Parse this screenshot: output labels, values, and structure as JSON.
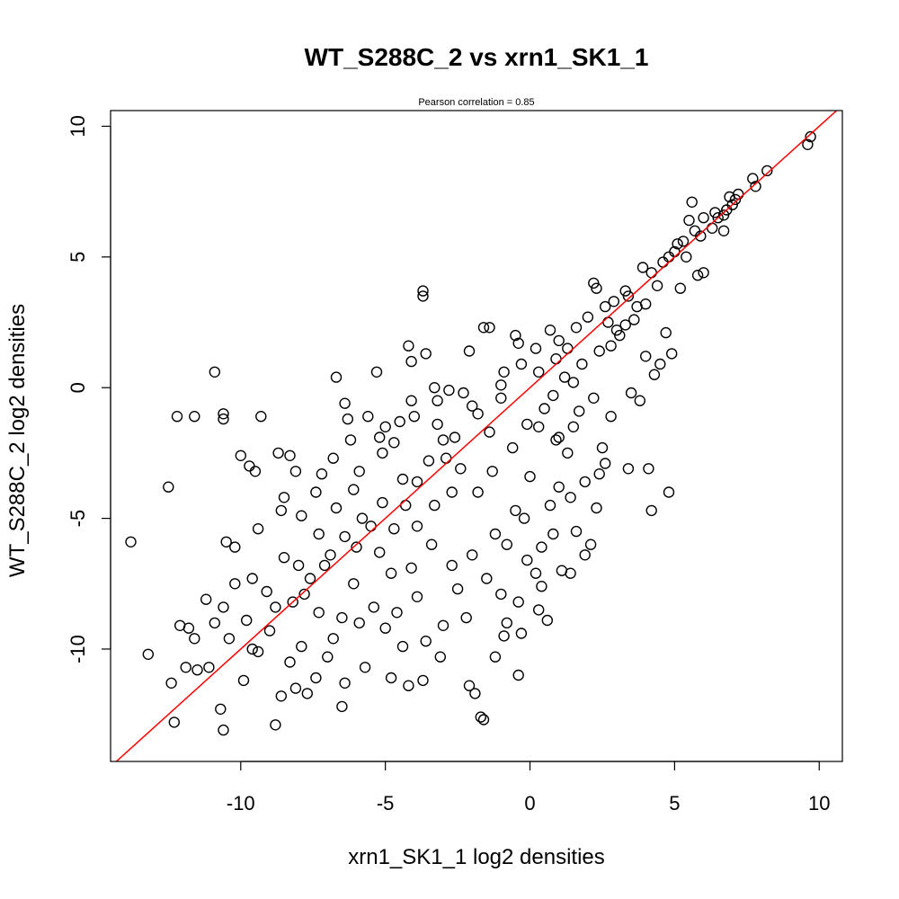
{
  "chart_data": {
    "type": "scatter",
    "title": "WT_S288C_2 vs xrn1_SK1_1",
    "subtitle": "Pearson correlation =  0.85",
    "xlabel": "xrn1_SK1_1 log2 densities",
    "ylabel": "WT_S288C_2 log2 densities",
    "xlim": [
      -14.5,
      10.8
    ],
    "ylim": [
      -14.3,
      10.6
    ],
    "x_ticks": [
      -10,
      -5,
      0,
      5,
      10
    ],
    "x_tick_labels": [
      "-10",
      "-5",
      "0",
      "5",
      "10"
    ],
    "y_ticks": [
      -10,
      -5,
      0,
      5,
      10
    ],
    "y_tick_labels": [
      "-10",
      "-5",
      "0",
      "5",
      "10"
    ],
    "grid": false,
    "legend": "none",
    "point_color": "#000000",
    "reference_line": {
      "slope": 1.0,
      "intercept": 0.0,
      "color": "#ff0000"
    },
    "points": [
      [
        9.7,
        9.6
      ],
      [
        9.6,
        9.3
      ],
      [
        8.2,
        8.3
      ],
      [
        7.7,
        8.0
      ],
      [
        7.8,
        7.7
      ],
      [
        7.2,
        7.4
      ],
      [
        7.1,
        7.2
      ],
      [
        7.0,
        7.0
      ],
      [
        6.9,
        7.3
      ],
      [
        6.8,
        6.8
      ],
      [
        6.7,
        6.6
      ],
      [
        6.5,
        6.5
      ],
      [
        6.4,
        6.7
      ],
      [
        6.0,
        6.5
      ],
      [
        5.6,
        7.1
      ],
      [
        5.5,
        6.4
      ],
      [
        5.7,
        6.0
      ],
      [
        5.3,
        5.6
      ],
      [
        5.0,
        5.2
      ],
      [
        4.8,
        5.0
      ],
      [
        4.6,
        4.8
      ],
      [
        5.8,
        4.3
      ],
      [
        6.0,
        4.4
      ],
      [
        6.7,
        6.0
      ],
      [
        5.4,
        5.0
      ],
      [
        5.2,
        3.8
      ],
      [
        4.7,
        2.1
      ],
      [
        4.9,
        1.3
      ],
      [
        4.5,
        0.9
      ],
      [
        3.4,
        3.5
      ],
      [
        3.3,
        2.4
      ],
      [
        3.0,
        2.2
      ],
      [
        2.8,
        1.6
      ],
      [
        4.0,
        1.2
      ],
      [
        4.3,
        0.5
      ],
      [
        3.5,
        -0.2
      ],
      [
        2.2,
        -0.4
      ],
      [
        2.8,
        -1.1
      ],
      [
        3.8,
        -0.5
      ],
      [
        1.7,
        -0.9
      ],
      [
        0.3,
        -1.5
      ],
      [
        1.0,
        -1.9
      ],
      [
        2.6,
        -2.9
      ],
      [
        2.4,
        -3.3
      ],
      [
        3.4,
        -3.1
      ],
      [
        2.5,
        -2.3
      ],
      [
        1.5,
        -1.5
      ],
      [
        1.3,
        -2.5
      ],
      [
        0.9,
        -2.0
      ],
      [
        4.1,
        -3.1
      ],
      [
        4.8,
        -4.0
      ],
      [
        4.2,
        -4.7
      ],
      [
        2.1,
        -6.0
      ],
      [
        1.9,
        -6.4
      ],
      [
        1.6,
        -5.5
      ],
      [
        1.4,
        -4.2
      ],
      [
        1.0,
        -3.8
      ],
      [
        0.7,
        -4.5
      ],
      [
        1.1,
        -7.0
      ],
      [
        1.4,
        -7.1
      ],
      [
        0.8,
        -5.6
      ],
      [
        0.4,
        -6.1
      ],
      [
        -0.1,
        -6.6
      ],
      [
        0.2,
        -7.1
      ],
      [
        0.4,
        -7.6
      ],
      [
        -0.4,
        -8.2
      ],
      [
        0.3,
        -8.5
      ],
      [
        -0.3,
        -9.4
      ],
      [
        -0.9,
        -9.5
      ],
      [
        -0.4,
        -11.0
      ],
      [
        -1.2,
        -10.3
      ],
      [
        -1.9,
        -11.7
      ],
      [
        -2.1,
        -11.4
      ],
      [
        -1.7,
        -12.6
      ],
      [
        -1.6,
        -12.7
      ],
      [
        -3.1,
        -10.3
      ],
      [
        -3.7,
        -11.2
      ],
      [
        -4.2,
        -11.4
      ],
      [
        -4.8,
        -11.1
      ],
      [
        -5.7,
        -10.7
      ],
      [
        -6.4,
        -11.3
      ],
      [
        -6.5,
        -12.2
      ],
      [
        -7.4,
        -11.1
      ],
      [
        -7.7,
        -11.7
      ],
      [
        -8.1,
        -11.5
      ],
      [
        -8.6,
        -11.8
      ],
      [
        -8.8,
        -12.9
      ],
      [
        -9.9,
        -11.2
      ],
      [
        -10.7,
        -12.3
      ],
      [
        -10.6,
        -13.1
      ],
      [
        -12.3,
        -12.8
      ],
      [
        -12.4,
        -11.3
      ],
      [
        -13.2,
        -10.2
      ],
      [
        -11.9,
        -10.7
      ],
      [
        -11.5,
        -10.8
      ],
      [
        -11.1,
        -10.7
      ],
      [
        -11.6,
        -9.6
      ],
      [
        -11.8,
        -9.2
      ],
      [
        -12.1,
        -9.1
      ],
      [
        -10.6,
        -8.4
      ],
      [
        -11.2,
        -8.1
      ],
      [
        -10.2,
        -7.5
      ],
      [
        -9.6,
        -7.3
      ],
      [
        -10.2,
        -6.1
      ],
      [
        -10.5,
        -5.9
      ],
      [
        -9.4,
        -5.4
      ],
      [
        -8.6,
        -4.7
      ],
      [
        -8.5,
        -4.2
      ],
      [
        -8.1,
        -3.2
      ],
      [
        -8.7,
        -2.5
      ],
      [
        -8.3,
        -2.6
      ],
      [
        -9.7,
        -3.0
      ],
      [
        -9.5,
        -3.2
      ],
      [
        -10.0,
        -2.6
      ],
      [
        -12.5,
        -3.8
      ],
      [
        -13.8,
        -5.9
      ],
      [
        -12.2,
        -1.1
      ],
      [
        -11.6,
        -1.1
      ],
      [
        -10.6,
        -1.0
      ],
      [
        -10.6,
        -1.2
      ],
      [
        -9.3,
        -1.1
      ],
      [
        -10.9,
        0.6
      ],
      [
        -6.7,
        0.4
      ],
      [
        -6.4,
        -0.6
      ],
      [
        -5.3,
        0.6
      ],
      [
        -6.3,
        -1.2
      ],
      [
        -5.6,
        -1.1
      ],
      [
        -5.0,
        -1.5
      ],
      [
        -4.7,
        -2.1
      ],
      [
        -5.2,
        -1.9
      ],
      [
        -4.1,
        -0.5
      ],
      [
        -4.0,
        -1.1
      ],
      [
        -3.7,
        3.7
      ],
      [
        -3.7,
        3.5
      ],
      [
        -3.3,
        0.0
      ],
      [
        -3.2,
        -0.5
      ],
      [
        -3.6,
        1.3
      ],
      [
        -4.1,
        1.0
      ],
      [
        -4.2,
        1.6
      ],
      [
        -2.8,
        -0.1
      ],
      [
        -2.3,
        -0.2
      ],
      [
        -2.1,
        1.4
      ],
      [
        -1.6,
        2.3
      ],
      [
        -1.4,
        2.3
      ],
      [
        -0.5,
        2.0
      ],
      [
        -0.4,
        1.7
      ],
      [
        -0.9,
        0.6
      ],
      [
        -1.0,
        0.1
      ],
      [
        0.7,
        2.2
      ],
      [
        1.0,
        1.8
      ],
      [
        0.2,
        1.5
      ],
      [
        2.2,
        4.0
      ],
      [
        2.3,
        3.8
      ],
      [
        2.6,
        3.1
      ],
      [
        2.9,
        3.3
      ],
      [
        3.3,
        3.7
      ],
      [
        3.9,
        4.6
      ],
      [
        -3.3,
        -4.5
      ],
      [
        -3.9,
        -3.6
      ],
      [
        -2.4,
        -3.1
      ],
      [
        -2.9,
        -2.7
      ],
      [
        -1.8,
        -4.0
      ],
      [
        -4.7,
        -5.4
      ],
      [
        -4.3,
        -4.5
      ],
      [
        -5.5,
        -5.3
      ],
      [
        -6.0,
        -6.1
      ],
      [
        -5.2,
        -6.3
      ],
      [
        -6.9,
        -6.4
      ],
      [
        -7.3,
        -5.6
      ],
      [
        -7.6,
        -7.3
      ],
      [
        -8.2,
        -8.2
      ],
      [
        -6.5,
        -8.8
      ],
      [
        -5.4,
        -8.4
      ],
      [
        -3.9,
        -8.0
      ],
      [
        -2.5,
        -7.7
      ],
      [
        -3.6,
        -9.7
      ],
      [
        -4.4,
        -9.9
      ],
      [
        -5.0,
        -9.2
      ],
      [
        -6.8,
        -9.6
      ],
      [
        -7.9,
        -9.9
      ],
      [
        -9.0,
        -9.3
      ],
      [
        -9.8,
        -8.9
      ],
      [
        -8.5,
        -6.5
      ],
      [
        -7.9,
        -4.9
      ],
      [
        -6.7,
        -4.6
      ],
      [
        -5.9,
        -3.2
      ],
      [
        -6.8,
        -2.7
      ],
      [
        -7.2,
        -3.3
      ],
      [
        -6.2,
        -2.0
      ],
      [
        -3.0,
        -2.0
      ],
      [
        -1.4,
        -1.7
      ],
      [
        -0.6,
        -2.3
      ],
      [
        0.0,
        -3.4
      ],
      [
        -0.5,
        -4.7
      ],
      [
        -1.2,
        -5.6
      ],
      [
        -2.0,
        -6.4
      ],
      [
        -1.5,
        -7.3
      ],
      [
        -2.7,
        -6.8
      ],
      [
        -3.4,
        -6.0
      ],
      [
        -4.1,
        -6.9
      ],
      [
        -0.8,
        -6.0
      ],
      [
        -0.2,
        -5.0
      ],
      [
        0.5,
        -0.8
      ],
      [
        1.2,
        0.4
      ],
      [
        1.8,
        0.9
      ],
      [
        2.4,
        1.4
      ],
      [
        3.1,
        2.0
      ],
      [
        3.6,
        2.6
      ],
      [
        4.0,
        3.2
      ],
      [
        4.4,
        3.9
      ],
      [
        1.6,
        2.3
      ],
      [
        0.9,
        1.1
      ],
      [
        -0.3,
        0.9
      ],
      [
        -1.8,
        -1.0
      ],
      [
        -2.6,
        -1.9
      ],
      [
        -3.5,
        -2.8
      ],
      [
        -4.4,
        -3.5
      ],
      [
        -5.1,
        -4.4
      ],
      [
        -5.8,
        -5.0
      ],
      [
        -6.4,
        -5.7
      ],
      [
        -7.1,
        -6.8
      ],
      [
        -7.8,
        -7.9
      ],
      [
        -8.8,
        -8.4
      ],
      [
        -9.4,
        -10.1
      ],
      [
        -7.3,
        -8.6
      ],
      [
        -6.1,
        -7.5
      ],
      [
        -4.8,
        -7.1
      ],
      [
        -3.9,
        -5.3
      ],
      [
        -2.7,
        -4.0
      ],
      [
        -1.3,
        -3.2
      ],
      [
        -0.1,
        -1.4
      ],
      [
        0.8,
        -0.3
      ],
      [
        1.5,
        0.2
      ],
      [
        2.0,
        2.7
      ],
      [
        2.7,
        2.5
      ],
      [
        3.7,
        3.1
      ],
      [
        4.2,
        4.4
      ],
      [
        5.1,
        5.5
      ],
      [
        5.9,
        5.8
      ],
      [
        6.3,
        6.1
      ],
      [
        1.9,
        -3.6
      ],
      [
        2.3,
        -4.6
      ],
      [
        0.6,
        -8.9
      ],
      [
        -0.8,
        -9.0
      ],
      [
        -1.0,
        -7.9
      ],
      [
        -2.2,
        -8.8
      ],
      [
        -3.0,
        -9.1
      ],
      [
        -4.6,
        -8.6
      ],
      [
        -5.9,
        -9.0
      ],
      [
        -7.0,
        -10.3
      ],
      [
        -8.3,
        -10.5
      ],
      [
        -9.6,
        -10.0
      ],
      [
        -10.4,
        -9.6
      ],
      [
        -10.9,
        -9.0
      ],
      [
        -9.1,
        -7.8
      ],
      [
        -8.0,
        -6.8
      ],
      [
        -7.4,
        -4.0
      ],
      [
        -6.1,
        -3.9
      ],
      [
        -5.1,
        -2.5
      ],
      [
        -4.5,
        -1.3
      ],
      [
        -3.2,
        -1.4
      ],
      [
        -2.0,
        -0.7
      ],
      [
        -1.0,
        -0.4
      ],
      [
        0.3,
        0.6
      ],
      [
        1.3,
        1.5
      ]
    ]
  }
}
